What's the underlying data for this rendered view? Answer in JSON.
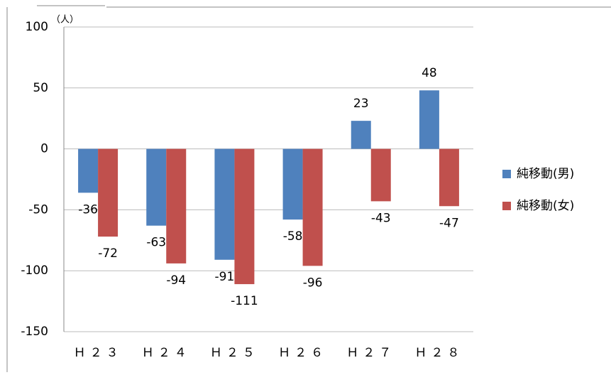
{
  "chart_data": {
    "type": "bar",
    "unit_label": "（人）",
    "categories": [
      "Ｈ２３",
      "Ｈ２４",
      "Ｈ２５",
      "Ｈ２６",
      "Ｈ２７",
      "Ｈ２８"
    ],
    "series": [
      {
        "name": "純移動(男)",
        "color": "#4f81bd",
        "values": [
          -36,
          -63,
          -91,
          -58,
          23,
          48
        ]
      },
      {
        "name": "純移動(女)",
        "color": "#c0504d",
        "values": [
          -72,
          -94,
          -111,
          -96,
          -43,
          -47
        ]
      }
    ],
    "ylim": [
      -150,
      100
    ],
    "yticks": [
      -150,
      -100,
      -50,
      0,
      50,
      100
    ],
    "grid": true,
    "legend": "right"
  }
}
